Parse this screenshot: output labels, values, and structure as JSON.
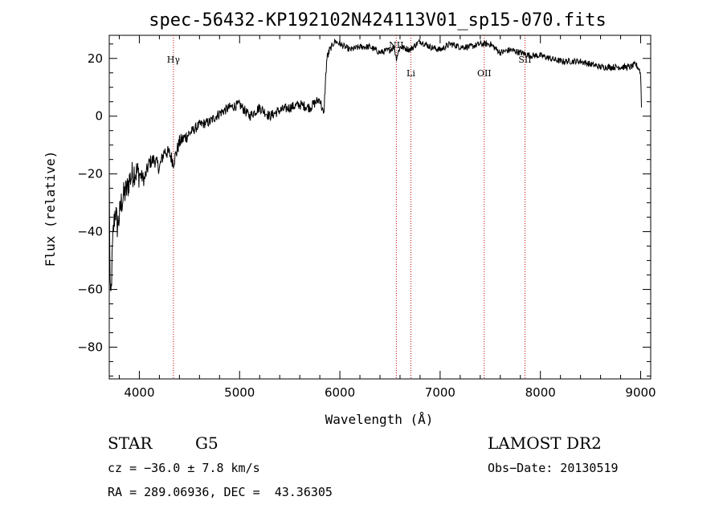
{
  "chart_data": {
    "type": "line",
    "title": "spec-56432-KP192102N424113V01_sp15-070.fits",
    "xlabel": "Wavelength (Å)",
    "ylabel": "Flux (relative)",
    "xlim": [
      3700,
      9100
    ],
    "ylim": [
      -91,
      28
    ],
    "x_ticks": [
      4000,
      5000,
      6000,
      7000,
      8000,
      9000
    ],
    "y_ticks": [
      -80,
      -60,
      -40,
      -20,
      0,
      20
    ],
    "x_tick_labels": [
      "4000",
      "5000",
      "6000",
      "7000",
      "8000",
      "9000"
    ],
    "y_tick_labels": [
      "−80",
      "−60",
      "−40",
      "−20",
      "0",
      "20"
    ],
    "grid": false,
    "series": [
      {
        "x": [
          3700,
          3705,
          3710,
          3720,
          3730,
          3740,
          3760,
          3780,
          3800,
          3820,
          3850,
          3880,
          3900,
          3950,
          4000,
          4050,
          4100,
          4150,
          4200,
          4250,
          4300,
          4340,
          4400,
          4500,
          4600,
          4700,
          4800,
          4900,
          5000,
          5100,
          5200,
          5300,
          5400,
          5500,
          5600,
          5700,
          5800,
          5840,
          5850,
          5870,
          5900,
          5950,
          6000,
          6100,
          6200,
          6300,
          6400,
          6500,
          6540,
          6563,
          6580,
          6600,
          6700,
          6800,
          6900,
          7000,
          7100,
          7200,
          7300,
          7400,
          7500,
          7600,
          7700,
          7800,
          7900,
          8000,
          8100,
          8200,
          8300,
          8400,
          8500,
          8600,
          8700,
          8800,
          8900,
          8950,
          8990,
          9000,
          9005,
          9010
        ],
        "y": [
          -20,
          -45,
          -66,
          -60,
          -48,
          -40,
          -32,
          -38,
          -35,
          -30,
          -27,
          -25,
          -22,
          -19,
          -20,
          -22,
          -16,
          -15,
          -18,
          -12,
          -13,
          -16,
          -9,
          -6,
          -3,
          -2,
          1,
          3,
          4,
          0,
          3,
          0,
          2,
          3,
          4,
          3,
          6,
          0,
          8,
          20,
          23,
          26,
          25,
          23,
          24,
          24,
          22,
          23,
          24,
          20,
          22,
          24,
          23,
          26,
          24,
          23,
          25,
          24,
          24,
          25,
          25,
          22,
          23,
          22,
          21,
          21,
          20,
          19,
          19,
          19,
          18,
          17,
          17,
          17,
          17,
          18,
          16,
          14,
          8,
          0
        ]
      }
    ],
    "annotations": [
      {
        "label": "Hγ",
        "x": 4340
      },
      {
        "label": "NII",
        "x": 6563
      },
      {
        "label": "Li",
        "x": 6708
      },
      {
        "label": "OII",
        "x": 7440
      },
      {
        "label": "SII",
        "x": 7846
      }
    ]
  },
  "info": {
    "class": "STAR",
    "subclass": "G5",
    "survey": "LAMOST DR2",
    "cz": "cz = −36.0 ± 7.8 km/s",
    "obs_date": "Obs−Date: 20130519",
    "radec": "RA = 289.06936, DEC =  43.36305"
  }
}
